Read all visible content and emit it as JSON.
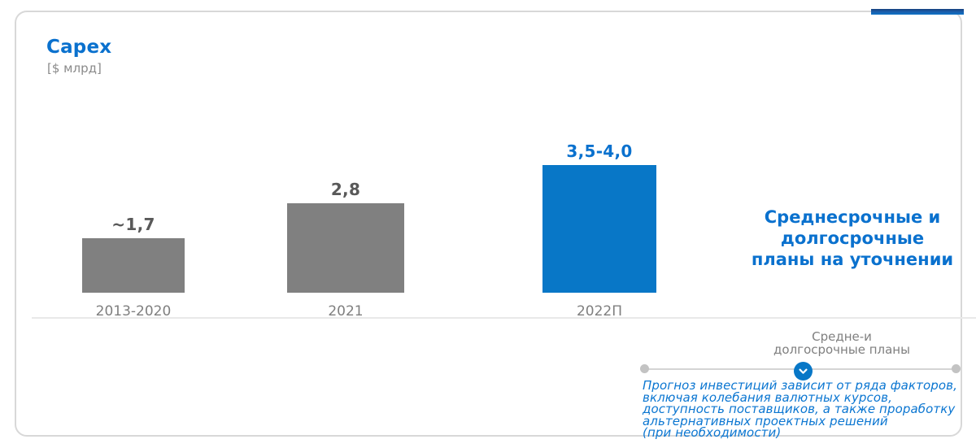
{
  "card": {
    "title": "Capex",
    "unit": "[$ млрд]"
  },
  "chart_data": {
    "type": "bar",
    "title": "Capex",
    "ylabel": "$ млрд",
    "categories": [
      "2013-2020",
      "2021",
      "2022П"
    ],
    "values": [
      1.7,
      2.8,
      4.0
    ],
    "value_labels": [
      "~1,7",
      "2,8",
      "3,5-4,0"
    ],
    "bar_colors": [
      "#808080",
      "#808080",
      "#0877C7"
    ],
    "value_label_colors": [
      "#595959",
      "#595959",
      "#0A71CE"
    ],
    "ylim": [
      0,
      4.2
    ],
    "grid": false,
    "legend_position": "none"
  },
  "annotation": {
    "plans_status": "Среднесрочные и\nдолгосрочные\nпланы на уточнении"
  },
  "timeline": {
    "stage_label": "Средне-и\nдолгосрочные планы",
    "chevron_icon": "chevron-down",
    "note": "Прогноз инвестиций зависит от ряда факторов,\nвключая колебания валютных курсов,\nдоступность поставщиков, а также проработку\nальтернативных проектных решений\n(при необходимости)"
  },
  "colors": {
    "accent_blue": "#0A71CE",
    "bar_blue": "#0877C7",
    "bar_gray": "#808080",
    "value_gray": "#595959",
    "label_gray": "#7F7F7F",
    "axis_line": "#E9E9E9",
    "timeline_line": "#D4D4D4",
    "timeline_dot": "#C3C3C3",
    "card_border": "#D8D8D8"
  }
}
